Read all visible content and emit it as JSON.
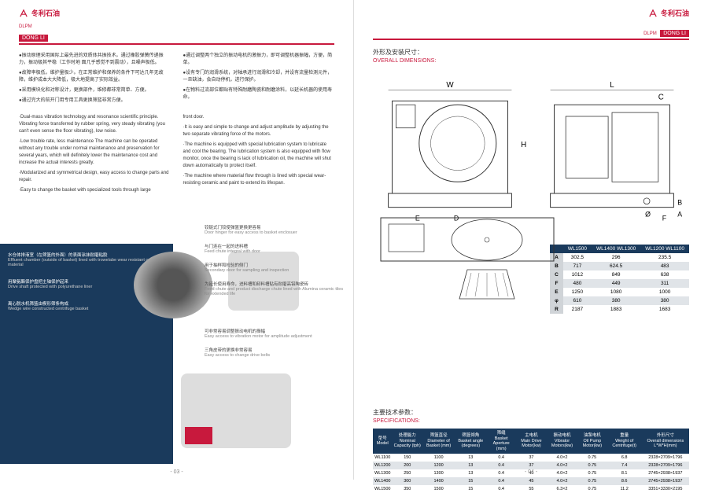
{
  "brand": {
    "cn": "冬利石油",
    "en": "DONG LI",
    "sub": "DLPM"
  },
  "left_text": {
    "cn_col1": [
      "●振动原理采用国际上最先进的双质体共振技术。通过橡胶弹簧传递振力，振动极其平稳（工作时地 面几乎感觉不到震动），且噪声极低。",
      "●故障率极低，维护量极少。在正常维护和保养的条件下可达几年无故障，维护成本大大降低，极大地提高了实际效益。",
      "●采用模块化和对称设计，更换部件，维修都非常简单、方便。",
      "●通过完大的前开门用专用工具更换筛篮非常方便。"
    ],
    "cn_col2": [
      "●通过调整两个独立的振动电机的激振力，即可调整机器振幅，方便，简单。",
      "●设有专门的润滑系统，对轴承进行润滑和冷却，并设有流量检测元件，一旦缺油，会自动停机，进行保护。",
      "●在物料过流部位都贴有特殊耐磨陶瓷和耐磨涂料，以延长机器的使用寿命。"
    ],
    "en_col1": [
      "·Dual-mass vibration technology and resonance scientific principle. Vibrating force transferred by rubber spring, very steady vibrating (you can't even sense the floor vibrating), low noise.",
      "·Low trouble rate, less maintenance The machine can be operated without any trouble under normal maintenance and preservation for several years, which will definitely lower the maintenance cost and increase the actual interests greatly.",
      "·Modularized and symmetrical design, easy access to change parts and repair.",
      "·Easy to change the basket with specialized tools through large"
    ],
    "en_col2": [
      "front door.",
      "·It is easy and simple to change and adjust amplitude by adjusting the two separate vibrating force of the motors.",
      "·The machine is equipped with special lubrication system to lubricate and cool the bearing. The lubrication system is also equipped with flow monitor, once the bearing is lack of lubrication oil, the machine will shut down automatically to protect itself.",
      "·The machine where material flow through is lined with special wear-resisting ceramic and paint to extend its lifespan."
    ]
  },
  "blue_labels": [
    {
      "cn": "水仓体排液室（在筛篮的外面）的表面涂抹耐磨粘胶",
      "en": "Effluent chamber (outside of basket) lined with trowelabe wear resistant ceramic material"
    },
    {
      "cn": "用聚氨酯保护盘把主轴保护起来",
      "en": "Drive shaft protected with polyurethane liner"
    },
    {
      "cn": "离心脱水机筛篮由楔形筛条构成",
      "en": "Wedge wire constructed centrifuge basket"
    }
  ],
  "img_labels": [
    {
      "cn": "铰链式门铰使弹篮更换更容易",
      "en": "Door hinger for easy access to basket enclosuer"
    },
    {
      "cn": "与门连在一起的进料槽",
      "en": "Feed chute integral with door"
    },
    {
      "cn": "用于抽样和检验的侧门",
      "en": "Secondary door for sampling and inspection"
    },
    {
      "cn": "为延长使用寿命，进料槽和卸料槽贴有耐磨高铝陶瓷砖",
      "en": "Feed chute and product discharge chute lined with Alumina ceramic tiles for extended life"
    },
    {
      "cn": "可非常容易调整振动电机的振幅",
      "en": "Easy access to vibration motor for amplitude adjustment"
    },
    {
      "cn": "三角皮带的更换非常容易",
      "en": "Easy access to change drive belts"
    }
  ],
  "page_nums": {
    "left": "- 03 -",
    "right": "- 04 -"
  },
  "dims_title": {
    "cn": "外形及安装尺寸：",
    "en": "OVERALL DIMENSIONS:"
  },
  "drawing_labels": [
    "W",
    "L",
    "C",
    "H",
    "E",
    "D",
    "F",
    "B",
    "A"
  ],
  "dim_table": {
    "headers": [
      "",
      "WL1500",
      "WL1400 WL1300",
      "WL1200 WL1100"
    ],
    "rows": [
      {
        "label": "A",
        "vals": [
          "302.5",
          "296",
          "235.5"
        ],
        "shade": false
      },
      {
        "label": "B",
        "vals": [
          "717",
          "624.5",
          "483"
        ],
        "shade": true
      },
      {
        "label": "C",
        "vals": [
          "1012",
          "849",
          "638"
        ],
        "shade": false
      },
      {
        "label": "F",
        "vals": [
          "480",
          "449",
          "311"
        ],
        "shade": true
      },
      {
        "label": "E",
        "vals": [
          "1250",
          "1080",
          "1000"
        ],
        "shade": false
      },
      {
        "label": "φ",
        "vals": [
          "610",
          "380",
          "380"
        ],
        "shade": true
      },
      {
        "label": "R",
        "vals": [
          "2187",
          "1883",
          "1683"
        ],
        "shade": false
      }
    ]
  },
  "spec_title": {
    "cn": "主要技术参数：",
    "en": "SPECIFICATIONS:"
  },
  "spec_table": {
    "headers": [
      "型号\nModel",
      "处理能力\nNominal Capacity (tph)",
      "筛篮直径\nDiameter of Basket (mm)",
      "筛篮倾角\nBasket angle (degrees)",
      "筛缝\nBasket Aperture (mm)",
      "主电机\nMain Drive Motor(kw)",
      "振动电机\nVibrator Motors(kw)",
      "油泵电机\nOil Pump Motor(kw)",
      "重量\nWeight of Centrifuge(t)",
      "外形尺寸\nOverall dimensions L*W*H(mm)"
    ],
    "rows": [
      {
        "vals": [
          "WL1100",
          "150",
          "1100",
          "13",
          "0.4",
          "37",
          "4.0×2",
          "0.75",
          "6.8",
          "2328×2709×1796"
        ],
        "shade": false
      },
      {
        "vals": [
          "WL1200",
          "200",
          "1200",
          "13",
          "0.4",
          "37",
          "4.0×2",
          "0.75",
          "7.4",
          "2328×2709×1796"
        ],
        "shade": true
      },
      {
        "vals": [
          "WL1300",
          "250",
          "1300",
          "13",
          "0.4",
          "45",
          "4.0×2",
          "0.75",
          "8.1",
          "2745×2938×1937"
        ],
        "shade": false
      },
      {
        "vals": [
          "WL1400",
          "300",
          "1400",
          "15",
          "0.4",
          "45",
          "4.0×2",
          "0.75",
          "8.6",
          "2745×2938×1937"
        ],
        "shade": true
      },
      {
        "vals": [
          "WL1500",
          "350",
          "1500",
          "15",
          "0.4",
          "55",
          "6.3×2",
          "0.75",
          "11.2",
          "3351×3330×2195"
        ],
        "shade": false
      }
    ]
  },
  "colors": {
    "brand_red": "#c8193d",
    "dark_blue": "#1a3a5c",
    "shade": "#e0e4e8"
  }
}
